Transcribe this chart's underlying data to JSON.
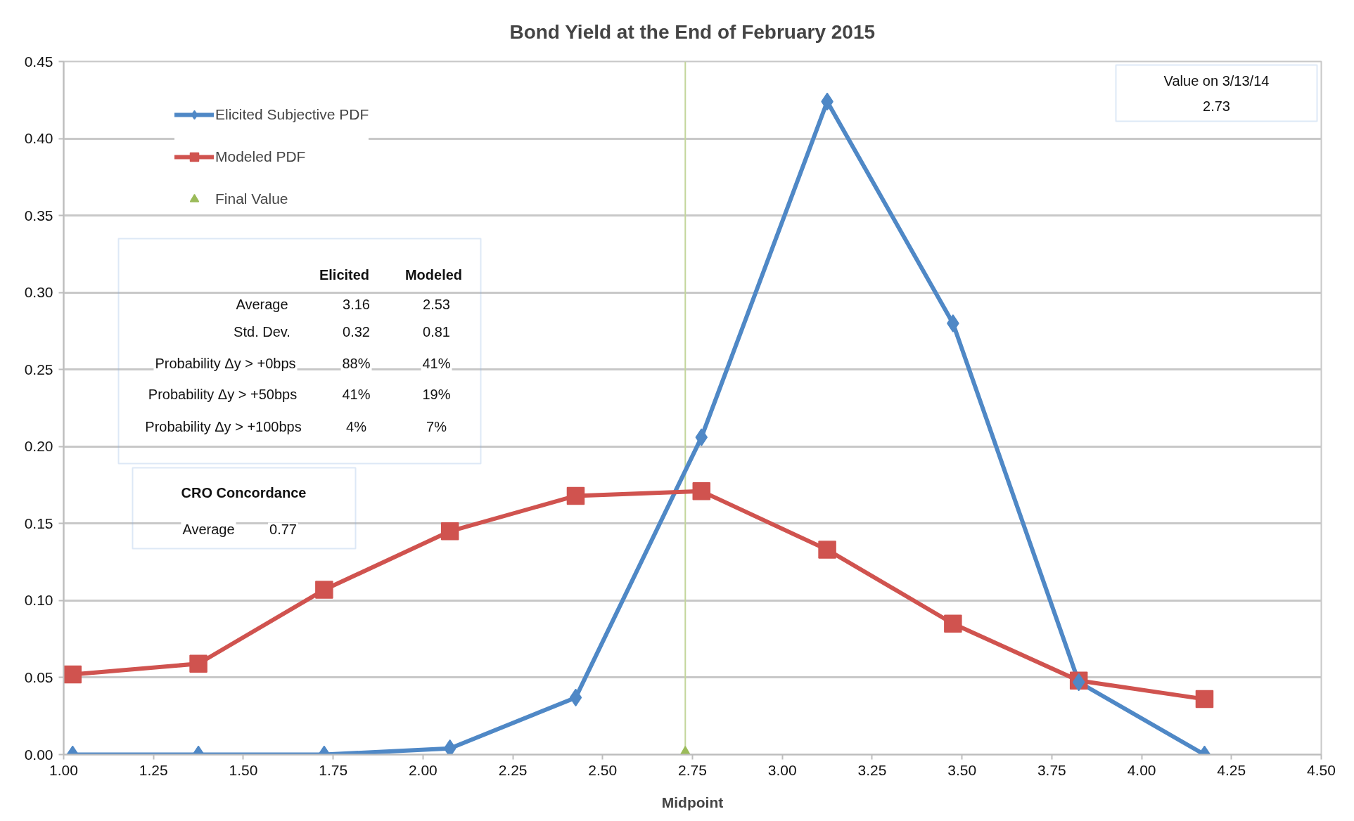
{
  "chart_data": {
    "type": "line",
    "title": "Bond Yield at the End of February 2015",
    "xlabel": "Midpoint",
    "x": [
      1.025,
      1.375,
      1.725,
      2.075,
      2.425,
      2.775,
      3.125,
      3.475,
      3.825,
      4.175
    ],
    "series": [
      {
        "name": "Elicited Subjective PDF",
        "marker": "diamond",
        "color": "#4f88c6",
        "values": [
          0,
          0,
          0,
          0.004,
          0.037,
          0.206,
          0.424,
          0.28,
          0.047,
          0
        ]
      },
      {
        "name": "Modeled PDF",
        "marker": "square",
        "color": "#d0534f",
        "values": [
          0.052,
          0.059,
          0.107,
          0.145,
          0.168,
          0.171,
          0.133,
          0.085,
          0.048,
          0.036
        ]
      },
      {
        "name": "Final Value",
        "type": "scatter",
        "marker": "triangle",
        "color": "#9bbb59",
        "x": [
          2.73
        ],
        "values": [
          0
        ]
      }
    ],
    "xlim": [
      1,
      4.5
    ],
    "xticks": [
      {
        "value": 1,
        "label": "1.00"
      },
      1.25,
      {
        "value": 1.5,
        "label": "1.50"
      },
      1.75,
      {
        "value": 2,
        "label": "2.00"
      },
      2.25,
      {
        "value": 2.5,
        "label": "2.50"
      },
      2.75,
      {
        "value": 3,
        "label": "3.00"
      },
      3.25,
      {
        "value": 3.5,
        "label": "3.50"
      },
      3.75,
      {
        "value": 4,
        "label": "4.00"
      },
      4.25,
      {
        "value": 4.5,
        "label": "4.50"
      }
    ],
    "ylim": [
      0,
      0.45
    ],
    "yticks": [
      {
        "value": 0,
        "label": "0.00"
      },
      0.05,
      {
        "value": 0.1,
        "label": "0.10"
      },
      0.15,
      {
        "value": 0.2,
        "label": "0.20"
      },
      0.25,
      {
        "value": 0.3,
        "label": "0.30"
      },
      0.35,
      {
        "value": 0.4,
        "label": "0.40"
      },
      0.45
    ],
    "grid": "y",
    "legend": "top left",
    "ref_lines": [
      {
        "axis": "x",
        "value": 2.73,
        "color": "#c3d69b"
      }
    ],
    "annotations": [
      "Value on 3/13/14",
      "2.73",
      "Elicited",
      "Modeled",
      "Average",
      "3.16",
      "2.53",
      "Std. Dev.",
      "0.32",
      "0.81",
      "Probability Δy > +0bps",
      "88%",
      "41%",
      "Probability Δy > +50bps",
      "41%",
      "19%",
      "Probability Δy > +100bps",
      "4%",
      "7%",
      "CRO Concordance",
      "Average",
      "0.77"
    ]
  }
}
